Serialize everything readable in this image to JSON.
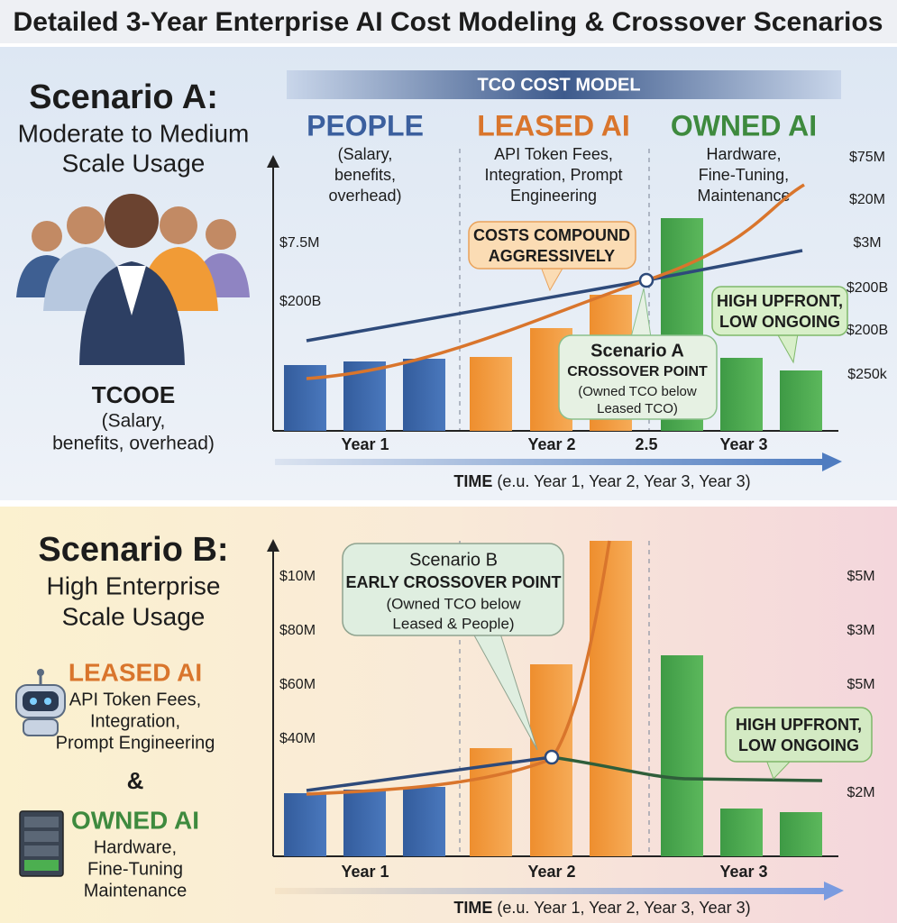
{
  "title": "Detailed 3-Year Enterprise AI Cost Modeling & Crossover Scenarios",
  "scenario_a": {
    "heading": "Scenario A:",
    "subtitle_lines": [
      "Moderate to Medium",
      "Scale Usage"
    ],
    "tcooe": {
      "label": "TCOOE",
      "lines": [
        "(Salary,",
        "benefits, overhead)"
      ]
    },
    "banner": "TCO COST MODEL",
    "columns": [
      {
        "title": "PEOPLE",
        "lines": [
          "(Salary,",
          "benefits,",
          "overhead)"
        ]
      },
      {
        "title": "LEASED AI",
        "lines": [
          "API Token Fees,",
          "Integration, Prompt",
          "Engineering"
        ]
      },
      {
        "title": "OWNED AI",
        "lines": [
          "Hardware,",
          "Fine-Tuning,",
          "Maintenance"
        ]
      }
    ],
    "left_axis": [
      "$7.5M",
      "$200B"
    ],
    "right_axis": [
      "$75M",
      "$20M",
      "$3M",
      "$200B",
      "$200B",
      "$250k"
    ],
    "callout_compound": [
      "COSTS COMPOUND",
      "AGGRESSIVELY"
    ],
    "callout_upfront": [
      "HIGH UPFRONT,",
      "LOW ONGOING"
    ],
    "callout_crossover": [
      "Scenario A",
      "CROSSOVER POINT",
      "(Owned TCO below",
      "Leased TCO)"
    ],
    "x_labels": [
      "Year 1",
      "Year 2",
      "2.5",
      "Year 3"
    ],
    "time_label": {
      "bold": "TIME",
      "rest": "(e.u. Year 1, Year 2, Year 3, Year 3)"
    }
  },
  "scenario_b": {
    "heading": "Scenario B:",
    "subtitle_lines": [
      "High Enterprise",
      "Scale Usage"
    ],
    "leased": {
      "title": "LEASED AI",
      "lines": [
        "API Token Fees,",
        "Integration,",
        "Prompt Engineering"
      ]
    },
    "ampersand": "&",
    "owned": {
      "title": "OWNED AI",
      "lines": [
        "Hardware,",
        "Fine-Tuning",
        "Maintenance"
      ]
    },
    "left_axis": [
      "$10M",
      "$80M",
      "$60M",
      "$40M"
    ],
    "right_axis": [
      "$5M",
      "$3M",
      "$5M",
      "$2M"
    ],
    "callout_crossover": [
      "Scenario B",
      "EARLY CROSSOVER POINT",
      "(Owned TCO below",
      "Leased & People)"
    ],
    "callout_upfront": [
      "HIGH UPFRONT,",
      "LOW ONGOING"
    ],
    "x_labels": [
      "Year 1",
      "Year 2",
      "Year 3"
    ],
    "time_label": {
      "bold": "TIME",
      "rest": "(e.u. Year 1, Year 2, Year 3, Year 3)"
    }
  }
}
